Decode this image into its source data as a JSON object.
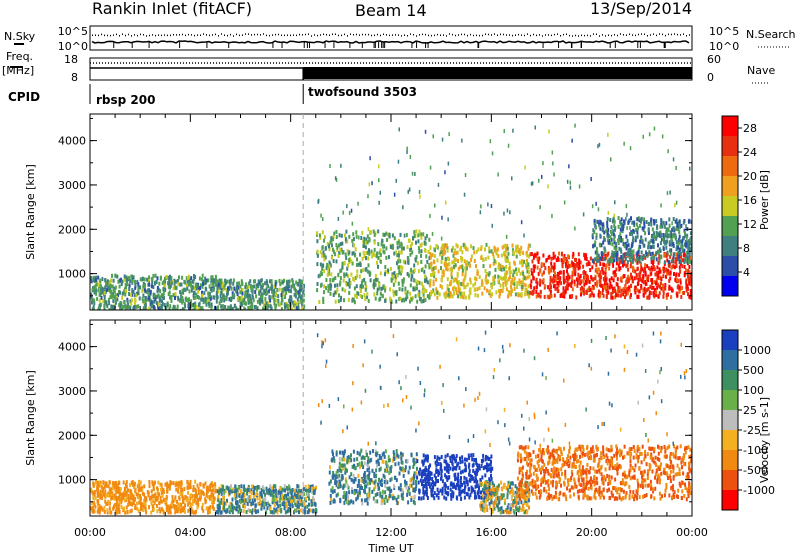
{
  "header": {
    "radar": "Rankin Inlet (fitACF)",
    "beam": "Beam 14",
    "date": "13/Sep/2014"
  },
  "strip": {
    "nsky_label": "N.Sky",
    "nsearch_label": "N.Search",
    "noise_ticks": [
      "10^5",
      "10^0"
    ],
    "freq_label": "Freq.",
    "freq_unit": "[MHz]",
    "freq_ticks": [
      "18",
      "8"
    ],
    "nave_label": "Nave",
    "nave_ticks": [
      "60",
      "0"
    ],
    "cpid_label": "CPID",
    "cpid_segments": [
      {
        "name": "rbsp 200",
        "start_hour": 0,
        "end_hour": 8.5
      },
      {
        "name": "twofsound 3503",
        "start_hour": 8.5,
        "end_hour": 24
      }
    ]
  },
  "colors": {
    "power_scale": [
      "#0000ee",
      "#2b4fa8",
      "#3f7f7f",
      "#52a052",
      "#c8cc22",
      "#f0a020",
      "#ee6a10",
      "#e83010",
      "#ff0000"
    ],
    "velocity_scale": [
      "#1a3fbf",
      "#2e6fa0",
      "#3f9060",
      "#6ab04a",
      "#bdbdbd",
      "#f4b020",
      "#f08a10",
      "#ee5010",
      "#ff0000"
    ]
  },
  "chart_data": [
    {
      "type": "heatmap",
      "panel": "power",
      "xlabel": "Time UT",
      "ylabel": "Slant Range [km]",
      "xlim": [
        0,
        24
      ],
      "ylim": [
        180,
        4600
      ],
      "x_ticks": [
        "00:00",
        "04:00",
        "08:00",
        "12:00",
        "16:00",
        "20:00",
        "00:00"
      ],
      "y_ticks": [
        1000,
        2000,
        3000,
        4000
      ],
      "colorbar": {
        "label": "Power [dB]",
        "ticks": [
          "4",
          "8",
          "12",
          "16",
          "20",
          "24",
          "28"
        ],
        "range": [
          0,
          30
        ]
      },
      "scatter_regions": [
        {
          "t": [
            0.0,
            5.0
          ],
          "range": [
            200,
            1000
          ],
          "value": 10
        },
        {
          "t": [
            5.0,
            8.5
          ],
          "range": [
            200,
            900
          ],
          "value": 10
        },
        {
          "t": [
            9.0,
            13.5
          ],
          "range": [
            400,
            2000
          ],
          "value": 12
        },
        {
          "t": [
            13.5,
            17.5
          ],
          "range": [
            500,
            1700
          ],
          "value": 16
        },
        {
          "t": [
            17.5,
            24.0
          ],
          "range": [
            500,
            1500
          ],
          "value": 26
        },
        {
          "t": [
            20.0,
            24.0
          ],
          "range": [
            1300,
            2300
          ],
          "value": 8
        }
      ]
    },
    {
      "type": "heatmap",
      "panel": "velocity",
      "xlabel": "Time UT",
      "ylabel": "Slant Range [km]",
      "xlim": [
        0,
        24
      ],
      "ylim": [
        180,
        4600
      ],
      "x_ticks": [
        "00:00",
        "04:00",
        "08:00",
        "12:00",
        "16:00",
        "20:00",
        "00:00"
      ],
      "y_ticks": [
        1000,
        2000,
        3000,
        4000
      ],
      "colorbar": {
        "label": "Velocity [m s-1]",
        "ticks": [
          "1000",
          "500",
          "100",
          "25",
          "-25",
          "-100",
          "-500",
          "-1000"
        ],
        "range": [
          1000,
          -1000
        ]
      },
      "scatter_regions": [
        {
          "t": [
            0.0,
            5.0
          ],
          "range": [
            300,
            1000
          ],
          "value": -200
        },
        {
          "t": [
            5.0,
            9.0
          ],
          "range": [
            300,
            900
          ],
          "value": 80
        },
        {
          "t": [
            9.5,
            13.0
          ],
          "range": [
            500,
            1700
          ],
          "value": 100
        },
        {
          "t": [
            13.0,
            16.0
          ],
          "range": [
            600,
            1600
          ],
          "value": 900
        },
        {
          "t": [
            15.5,
            17.5
          ],
          "range": [
            300,
            1000
          ],
          "value": 0
        },
        {
          "t": [
            17.0,
            24.0
          ],
          "range": [
            600,
            1800
          ],
          "value": -500
        }
      ]
    }
  ]
}
